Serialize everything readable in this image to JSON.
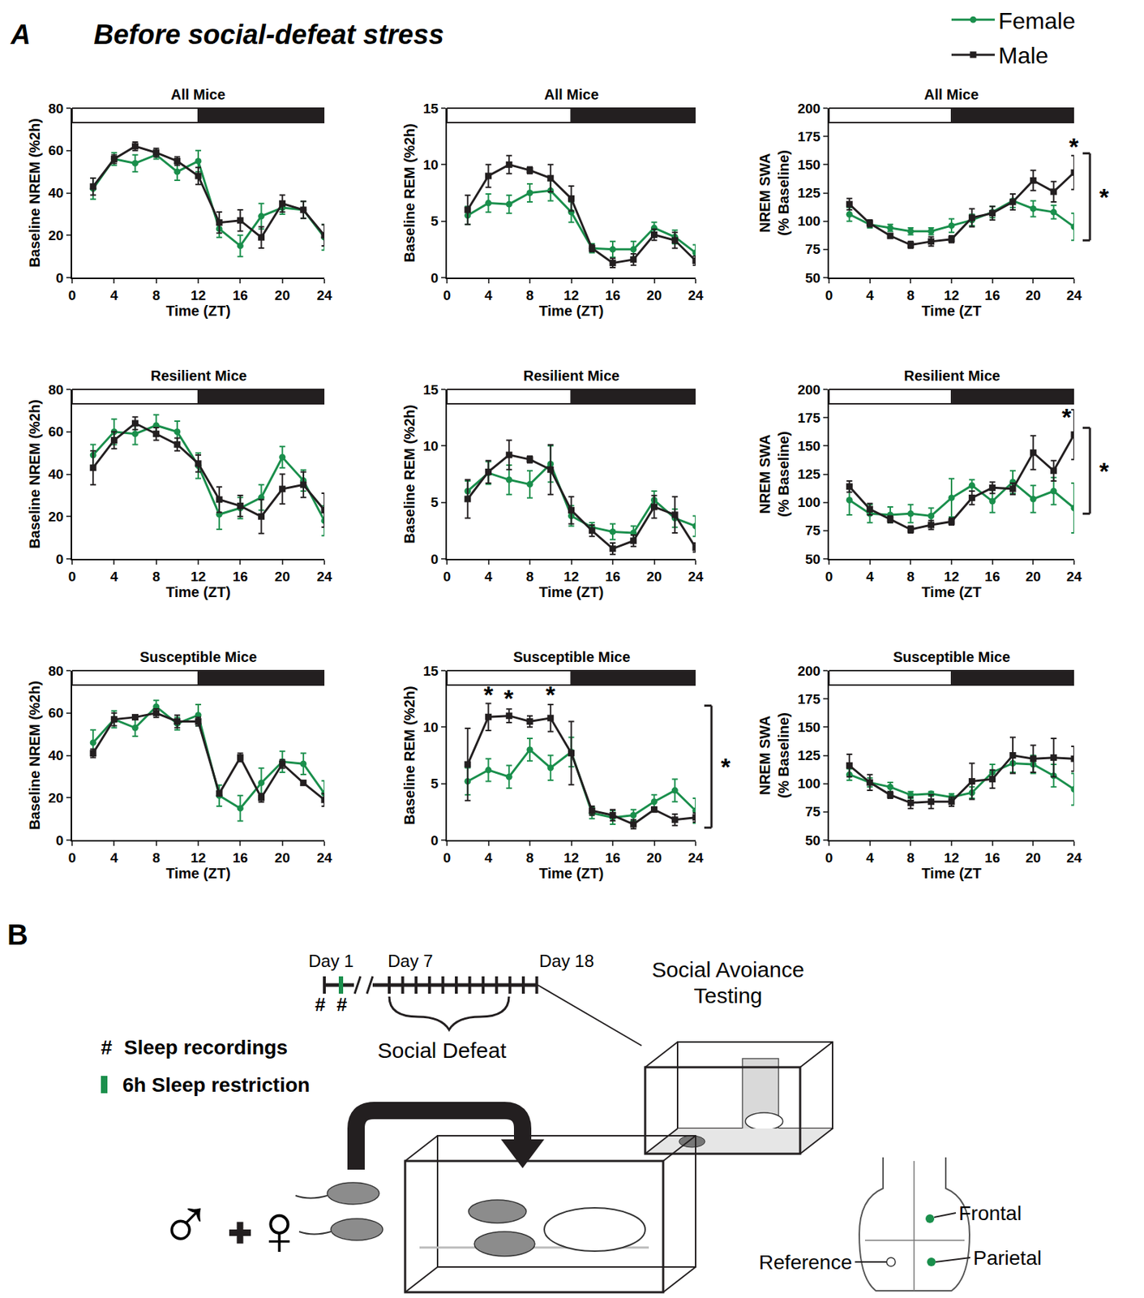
{
  "panel_label": "A",
  "figure_title": "Before social-defeat stress",
  "chart_data": [
    {
      "type": "line",
      "title": "All Mice",
      "x_label": "Time (ZT)",
      "y_label": "Baseline NREM (%2h)",
      "x": [
        2,
        4,
        6,
        8,
        10,
        12,
        14,
        16,
        18,
        20,
        22,
        24
      ],
      "xlim": [
        0,
        24
      ],
      "xticks": [
        0,
        4,
        8,
        12,
        16,
        20,
        24
      ],
      "ylim": [
        0,
        80
      ],
      "yticks": [
        0,
        20,
        40,
        60,
        80
      ],
      "series": [
        {
          "name": "Female",
          "color": "#1a8f4c",
          "marker": "circle",
          "values": [
            42,
            56,
            54,
            58,
            50,
            55,
            23,
            15,
            29,
            33,
            32,
            19
          ],
          "errors": [
            5,
            3,
            4,
            2,
            4,
            5,
            4,
            5,
            6,
            3,
            4,
            6
          ]
        },
        {
          "name": "Male",
          "color": "#231f20",
          "marker": "square",
          "values": [
            43,
            56,
            62,
            59,
            55,
            48,
            26,
            27,
            19,
            35,
            32,
            20
          ],
          "errors": [
            4,
            2,
            2,
            2,
            2,
            4,
            5,
            5,
            5,
            4,
            4,
            5
          ]
        }
      ]
    },
    {
      "type": "line",
      "title": "All Mice",
      "x_label": "Time (ZT)",
      "y_label": "Baseline REM (%2h)",
      "x": [
        2,
        4,
        6,
        8,
        10,
        12,
        14,
        16,
        18,
        20,
        22,
        24
      ],
      "xlim": [
        0,
        24
      ],
      "xticks": [
        0,
        4,
        8,
        12,
        16,
        20,
        24
      ],
      "ylim": [
        0,
        15
      ],
      "yticks": [
        0,
        5,
        10,
        15
      ],
      "series": [
        {
          "name": "Female",
          "color": "#1a8f4c",
          "marker": "circle",
          "values": [
            5.5,
            6.6,
            6.5,
            7.5,
            7.7,
            5.8,
            2.6,
            2.5,
            2.5,
            4.4,
            3.6,
            2.2
          ],
          "errors": [
            0.8,
            0.8,
            0.8,
            0.8,
            0.9,
            0.9,
            0.4,
            0.7,
            0.7,
            0.5,
            0.6,
            0.7
          ]
        },
        {
          "name": "Male",
          "color": "#231f20",
          "marker": "square",
          "values": [
            6,
            9,
            10,
            9.5,
            8.8,
            7,
            2.6,
            1.3,
            1.6,
            3.8,
            3.3,
            1.5
          ],
          "errors": [
            1.3,
            1,
            0.8,
            0.3,
            1.2,
            1.1,
            0.3,
            0.4,
            0.5,
            0.5,
            0.7,
            0.4
          ]
        }
      ]
    },
    {
      "type": "line",
      "title": "All Mice",
      "x_label": "Time (ZT",
      "y_label": "NREM SWA (% Baseline)",
      "x": [
        2,
        4,
        6,
        8,
        10,
        12,
        14,
        16,
        18,
        20,
        22,
        24
      ],
      "xlim": [
        0,
        24
      ],
      "xticks": [
        0,
        4,
        8,
        12,
        16,
        20,
        24
      ],
      "ylim": [
        50,
        200
      ],
      "yticks": [
        50,
        75,
        100,
        125,
        150,
        175,
        200
      ],
      "legend": "top right",
      "series": [
        {
          "name": "Female",
          "color": "#1a8f4c",
          "marker": "circle",
          "values": [
            106,
            97,
            94,
            91,
            91,
            96,
            101,
            108,
            118,
            111,
            108,
            95
          ],
          "errors": [
            6,
            3,
            3,
            3,
            3,
            6,
            5,
            5,
            6,
            7,
            6,
            12
          ]
        },
        {
          "name": "Male",
          "color": "#231f20",
          "marker": "square",
          "values": [
            115,
            98,
            87,
            79,
            82,
            84,
            103,
            107,
            117,
            136,
            126,
            143
          ],
          "errors": [
            5,
            3,
            2,
            3,
            4,
            3,
            8,
            6,
            7,
            9,
            9,
            15
          ]
        }
      ],
      "annotations": [
        {
          "text": "*",
          "x": 24,
          "y": 166
        }
      ],
      "brackets": [
        {
          "text": "*",
          "y": [
            83,
            160
          ]
        }
      ]
    },
    {
      "type": "line",
      "title": "Resilient Mice",
      "x_label": "Time (ZT)",
      "y_label": "Baseline NREM (%2h)",
      "x": [
        2,
        4,
        6,
        8,
        10,
        12,
        14,
        16,
        18,
        20,
        22,
        24
      ],
      "xlim": [
        0,
        24
      ],
      "xticks": [
        0,
        4,
        8,
        12,
        16,
        20,
        24
      ],
      "ylim": [
        0,
        80
      ],
      "yticks": [
        0,
        20,
        40,
        60,
        80
      ],
      "series": [
        {
          "name": "Female",
          "color": "#1a8f4c",
          "marker": "circle",
          "values": [
            49,
            60,
            59,
            63,
            60,
            44,
            21,
            24,
            29,
            48,
            37,
            18
          ],
          "errors": [
            5,
            6,
            5,
            5,
            5,
            6,
            7,
            5,
            6,
            5,
            5,
            7
          ]
        },
        {
          "name": "Male",
          "color": "#231f20",
          "marker": "square",
          "values": [
            43,
            56,
            64,
            59,
            54,
            45,
            28,
            25,
            20,
            33,
            35,
            23
          ],
          "errors": [
            8,
            4,
            3,
            3,
            3,
            4,
            6,
            5,
            8,
            7,
            6,
            8
          ]
        }
      ]
    },
    {
      "type": "line",
      "title": "Resilient Mice",
      "x_label": "Time (ZT)",
      "y_label": "Baseline REM (%2h)",
      "x": [
        2,
        4,
        6,
        8,
        10,
        12,
        14,
        16,
        18,
        20,
        22,
        24
      ],
      "xlim": [
        0,
        24
      ],
      "xticks": [
        0,
        4,
        8,
        12,
        16,
        20,
        24
      ],
      "ylim": [
        0,
        15
      ],
      "yticks": [
        0,
        5,
        10,
        15
      ],
      "series": [
        {
          "name": "Female",
          "color": "#1a8f4c",
          "marker": "circle",
          "values": [
            6,
            7.6,
            7,
            6.6,
            8.4,
            3.8,
            2.8,
            2.4,
            2.3,
            5.2,
            3.6,
            2.9
          ],
          "errors": [
            0.9,
            1,
            1.3,
            1.2,
            1.6,
            0.9,
            0.4,
            0.7,
            0.6,
            0.8,
            0.8,
            0.9
          ]
        },
        {
          "name": "Male",
          "color": "#231f20",
          "marker": "square",
          "values": [
            5.3,
            7.7,
            9.2,
            8.8,
            7.9,
            4.3,
            2.5,
            0.9,
            1.6,
            4.6,
            3.9,
            1
          ],
          "errors": [
            1.7,
            1,
            1.3,
            0.3,
            2.2,
            1.2,
            0.5,
            0.5,
            0.5,
            1,
            1.6,
            0.4
          ]
        }
      ]
    },
    {
      "type": "line",
      "title": "Resilient Mice",
      "x_label": "Time (ZT",
      "y_label": "NREM SWA (% Baseline)",
      "x": [
        2,
        4,
        6,
        8,
        10,
        12,
        14,
        16,
        18,
        20,
        22,
        24
      ],
      "xlim": [
        0,
        24
      ],
      "xticks": [
        0,
        4,
        8,
        12,
        16,
        20,
        24
      ],
      "ylim": [
        50,
        200
      ],
      "yticks": [
        50,
        75,
        100,
        125,
        150,
        175,
        200
      ],
      "series": [
        {
          "name": "Female",
          "color": "#1a8f4c",
          "marker": "circle",
          "values": [
            102,
            90,
            89,
            90,
            88,
            104,
            115,
            101,
            118,
            103,
            110,
            95
          ],
          "errors": [
            13,
            8,
            7,
            8,
            7,
            17,
            5,
            10,
            10,
            12,
            12,
            22
          ]
        },
        {
          "name": "Male",
          "color": "#231f20",
          "marker": "square",
          "values": [
            114,
            94,
            85,
            76,
            80,
            83,
            104,
            113,
            112,
            144,
            128,
            160
          ],
          "errors": [
            5,
            5,
            3,
            3,
            4,
            3,
            6,
            5,
            5,
            15,
            9,
            22
          ]
        }
      ],
      "annotations": [
        {
          "text": "*",
          "x": 23.3,
          "y": 176
        }
      ],
      "brackets": [
        {
          "text": "*",
          "y": [
            90,
            166
          ]
        }
      ]
    },
    {
      "type": "line",
      "title": "Susceptible Mice",
      "x_label": "Time (ZT)",
      "y_label": "Baseline NREM (%2h)",
      "x": [
        2,
        4,
        6,
        8,
        10,
        12,
        14,
        16,
        18,
        20,
        22,
        24
      ],
      "xlim": [
        0,
        24
      ],
      "xticks": [
        0,
        4,
        8,
        12,
        16,
        20,
        24
      ],
      "ylim": [
        0,
        80
      ],
      "yticks": [
        0,
        20,
        40,
        60,
        80
      ],
      "series": [
        {
          "name": "Female",
          "color": "#1a8f4c",
          "marker": "circle",
          "values": [
            46,
            57,
            53,
            63,
            55,
            59,
            21,
            15,
            27,
            37,
            36,
            22
          ],
          "errors": [
            6,
            4,
            4,
            3,
            3,
            5,
            5,
            6,
            7,
            5,
            5,
            6
          ]
        },
        {
          "name": "Male",
          "color": "#231f20",
          "marker": "square",
          "values": [
            41,
            57,
            58,
            60,
            56,
            56,
            22,
            39,
            20,
            36,
            27,
            19
          ],
          "errors": [
            2,
            3,
            1,
            2,
            3,
            2,
            1,
            2,
            2,
            2,
            1,
            3
          ]
        }
      ]
    },
    {
      "type": "line",
      "title": "Susceptible Mice",
      "x_label": "Time (ZT)",
      "y_label": "Baseline REM (%2h)",
      "x": [
        2,
        4,
        6,
        8,
        10,
        12,
        14,
        16,
        18,
        20,
        22,
        24
      ],
      "xlim": [
        0,
        24
      ],
      "xticks": [
        0,
        4,
        8,
        12,
        16,
        20,
        24
      ],
      "ylim": [
        0,
        15
      ],
      "yticks": [
        0,
        5,
        10,
        15
      ],
      "series": [
        {
          "name": "Female",
          "color": "#1a8f4c",
          "marker": "circle",
          "values": [
            5.2,
            6.2,
            5.6,
            8,
            6.4,
            7.8,
            2.4,
            2,
            2.2,
            3.4,
            4.4,
            2.6
          ],
          "errors": [
            1.2,
            1,
            1,
            1,
            1.1,
            1.3,
            0.5,
            0.6,
            0.5,
            0.6,
            1,
            1.1
          ]
        },
        {
          "name": "Male",
          "color": "#231f20",
          "marker": "square",
          "values": [
            6.7,
            10.9,
            11,
            10.5,
            10.8,
            7.7,
            2.6,
            2.2,
            1.4,
            2.7,
            1.8,
            2
          ],
          "errors": [
            3.2,
            1.2,
            0.6,
            0.5,
            1.2,
            2.8,
            0.4,
            0.5,
            0.4,
            0.2,
            0.5,
            0.4
          ]
        }
      ],
      "annotations": [
        {
          "text": "*",
          "x": 4,
          "y": 12.9
        },
        {
          "text": "*",
          "x": 6,
          "y": 12.6
        },
        {
          "text": "*",
          "x": 10,
          "y": 12.9
        }
      ],
      "brackets": [
        {
          "text": "*",
          "y": [
            1.1,
            11.9
          ]
        }
      ]
    },
    {
      "type": "line",
      "title": "Susceptible Mice",
      "x_label": "Time (ZT",
      "y_label": "NREM SWA (% Baseline)",
      "x": [
        2,
        4,
        6,
        8,
        10,
        12,
        14,
        16,
        18,
        20,
        22,
        24
      ],
      "xlim": [
        0,
        24
      ],
      "xticks": [
        0,
        4,
        8,
        12,
        16,
        20,
        24
      ],
      "ylim": [
        50,
        200
      ],
      "yticks": [
        50,
        75,
        100,
        125,
        150,
        175,
        200
      ],
      "series": [
        {
          "name": "Female",
          "color": "#1a8f4c",
          "marker": "circle",
          "values": [
            108,
            101,
            97,
            90,
            91,
            88,
            92,
            110,
            118,
            117,
            107,
            95
          ],
          "errors": [
            5,
            4,
            4,
            3,
            2,
            3,
            5,
            7,
            8,
            8,
            10,
            14
          ]
        },
        {
          "name": "Male",
          "color": "#231f20",
          "marker": "square",
          "values": [
            116,
            101,
            90,
            83,
            84,
            84,
            102,
            104,
            125,
            122,
            123,
            122
          ],
          "errors": [
            10,
            7,
            3,
            5,
            6,
            4,
            16,
            8,
            16,
            12,
            17,
            11
          ]
        }
      ]
    }
  ],
  "panel_b": {
    "label": "B",
    "days": [
      "Day 1",
      "Day 7",
      "Day 18"
    ],
    "recording_marks": [
      "#",
      "#"
    ],
    "key": [
      {
        "symbol": "#",
        "text": "Sleep recordings"
      },
      {
        "text": "6h Sleep restriction",
        "color": "#1a8f4c"
      }
    ],
    "defeat": "Social Defeat",
    "testing": "Social Avoiance Testing",
    "sexes": [
      "♂",
      "♀"
    ],
    "electrodes": {
      "frontal": "Frontal",
      "parietal": "Parietal",
      "reference": "Reference"
    }
  }
}
